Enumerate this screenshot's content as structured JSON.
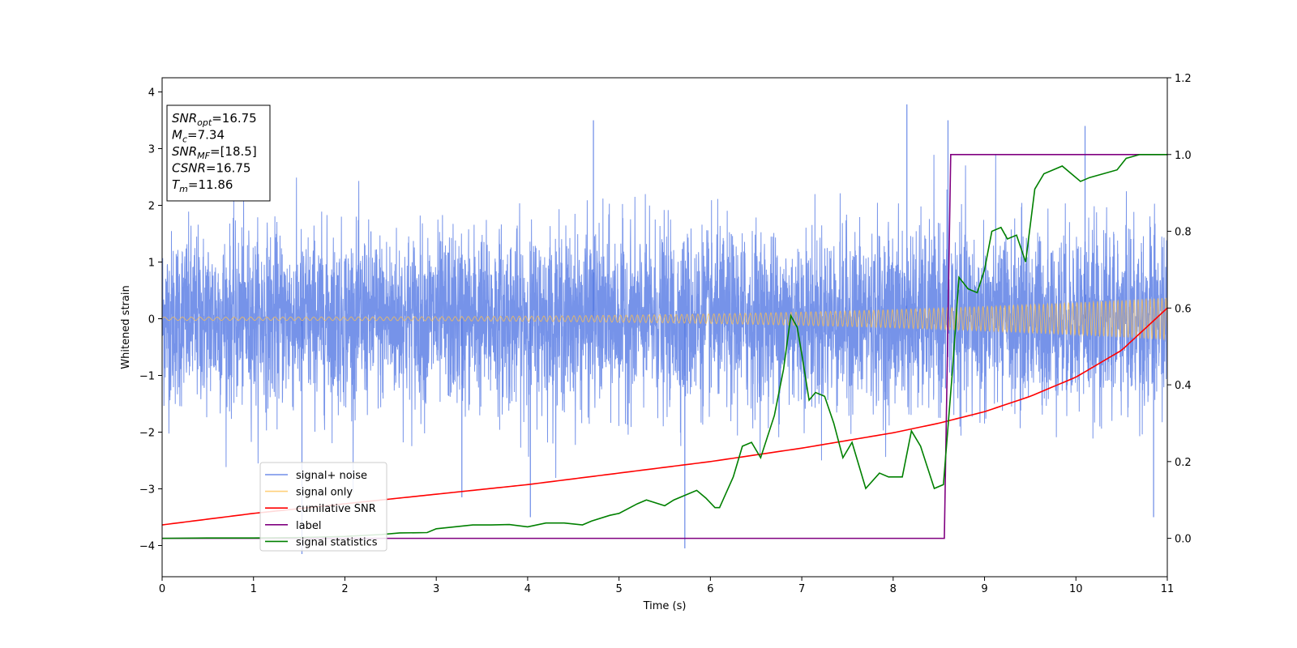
{
  "chart_data": {
    "type": "line",
    "title": "",
    "xlabel": "Time (s)",
    "ylabel": "Whitened strain",
    "y2label": "",
    "xlim": [
      0,
      11
    ],
    "ylim": [
      -4.55,
      4.25
    ],
    "y2lim": [
      -0.1,
      1.2
    ],
    "xticks": [
      "0",
      "1",
      "2",
      "3",
      "4",
      "5",
      "6",
      "7",
      "8",
      "9",
      "10",
      "11"
    ],
    "yticks": [
      "−4",
      "−3",
      "−2",
      "−1",
      "0",
      "1",
      "2",
      "3",
      "4"
    ],
    "y2ticks": [
      "0.0",
      "0.2",
      "0.4",
      "0.6",
      "0.8",
      "1.0",
      "1.2"
    ],
    "grid": false,
    "legend_position": "lower-left",
    "annotation": {
      "lines": [
        {
          "var": "SNR",
          "sub": "opt",
          "value": "=16.75"
        },
        {
          "var": "M",
          "sub": "c",
          "value": "=7.34"
        },
        {
          "var": "SNR",
          "sub": "MF",
          "value": "=[18.5]"
        },
        {
          "var": "CSNR",
          "sub": "",
          "value": "=16.75"
        },
        {
          "var": "T",
          "sub": "m",
          "value": "=11.86"
        }
      ]
    },
    "series": [
      {
        "name": "signal+ noise",
        "axis": "left",
        "color": "#4169e1",
        "description_kind": "noise",
        "sigma": 0.8,
        "spikes": [
          [
            4.72,
            3.5
          ],
          [
            8.15,
            3.78
          ],
          [
            8.6,
            3.5
          ],
          [
            10.1,
            3.4
          ],
          [
            5.72,
            -4.05
          ],
          [
            1.53,
            -4.15
          ],
          [
            10.85,
            -3.5
          ],
          [
            4.03,
            -3.5
          ],
          [
            3.28,
            -3.15
          ]
        ]
      },
      {
        "name": "signal only",
        "axis": "left",
        "color": "#ffc04d",
        "description_kind": "chirp",
        "amplitude_start": 0.03,
        "amplitude_end": 0.37
      },
      {
        "name": "cumilative SNR",
        "axis": "right",
        "color": "#ff0000",
        "x": [
          0,
          1,
          2,
          3,
          4,
          5,
          6,
          7,
          8,
          8.5,
          9,
          9.5,
          10,
          10.5,
          11
        ],
        "y": [
          0.035,
          0.065,
          0.09,
          0.115,
          0.14,
          0.17,
          0.2,
          0.235,
          0.275,
          0.3,
          0.33,
          0.37,
          0.42,
          0.49,
          0.6
        ]
      },
      {
        "name": "label",
        "axis": "right",
        "color": "#800080",
        "x": [
          0,
          8.56,
          8.63,
          11
        ],
        "y": [
          0,
          0,
          1,
          1
        ]
      },
      {
        "name": "signal statistics",
        "axis": "right",
        "color": "#008000",
        "x": [
          0,
          0.5,
          1,
          1.5,
          2,
          2.4,
          2.6,
          2.9,
          3.0,
          3.2,
          3.4,
          3.6,
          3.8,
          4.0,
          4.2,
          4.4,
          4.6,
          4.7,
          4.9,
          5.0,
          5.2,
          5.3,
          5.5,
          5.6,
          5.7,
          5.85,
          5.95,
          6.05,
          6.1,
          6.25,
          6.35,
          6.45,
          6.55,
          6.7,
          6.8,
          6.88,
          6.95,
          7.0,
          7.08,
          7.15,
          7.25,
          7.35,
          7.45,
          7.55,
          7.7,
          7.85,
          7.95,
          8.1,
          8.2,
          8.3,
          8.45,
          8.55,
          8.65,
          8.72,
          8.82,
          8.92,
          9.0,
          9.08,
          9.18,
          9.25,
          9.35,
          9.45,
          9.55,
          9.65,
          9.75,
          9.85,
          9.95,
          10.05,
          10.15,
          10.3,
          10.45,
          10.55,
          10.7,
          10.85,
          11
        ],
        "y": [
          0,
          0.001,
          0.001,
          0.002,
          0.005,
          0.01,
          0.014,
          0.015,
          0.025,
          0.03,
          0.035,
          0.035,
          0.036,
          0.03,
          0.04,
          0.04,
          0.035,
          0.045,
          0.06,
          0.065,
          0.09,
          0.1,
          0.085,
          0.1,
          0.11,
          0.125,
          0.105,
          0.08,
          0.08,
          0.16,
          0.24,
          0.25,
          0.21,
          0.32,
          0.44,
          0.58,
          0.55,
          0.48,
          0.36,
          0.38,
          0.37,
          0.3,
          0.21,
          0.25,
          0.13,
          0.17,
          0.16,
          0.16,
          0.28,
          0.24,
          0.13,
          0.14,
          0.44,
          0.68,
          0.65,
          0.64,
          0.7,
          0.8,
          0.81,
          0.78,
          0.79,
          0.72,
          0.91,
          0.95,
          0.96,
          0.97,
          0.95,
          0.93,
          0.94,
          0.95,
          0.96,
          0.99,
          1.0,
          1.0,
          1.0
        ]
      }
    ]
  }
}
